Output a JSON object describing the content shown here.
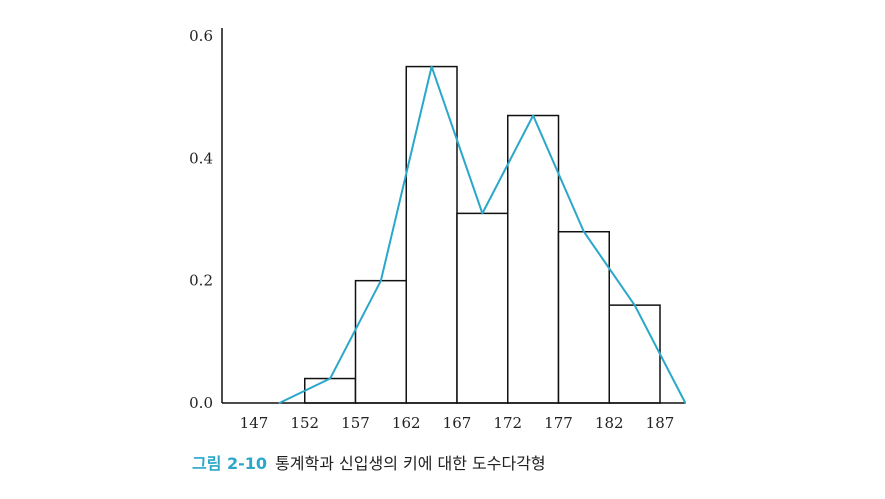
{
  "chart_data": {
    "type": "bar",
    "bins": [
      147,
      152,
      157,
      162,
      167,
      172,
      177,
      182,
      187
    ],
    "histogram_heights": [
      0.04,
      0.2,
      0.55,
      0.31,
      0.47,
      0.28,
      0.16
    ],
    "histogram_bin_starts": [
      152,
      157,
      162,
      167,
      172,
      177,
      182
    ],
    "bin_width": 5,
    "polygon_x": [
      149.5,
      154.5,
      159.5,
      164.5,
      169.5,
      174.5,
      179.5,
      184.5,
      189.5
    ],
    "polygon_y": [
      0,
      0.04,
      0.2,
      0.55,
      0.31,
      0.47,
      0.28,
      0.16,
      0
    ],
    "x_tick_labels": [
      "147",
      "152",
      "157",
      "162",
      "167",
      "172",
      "177",
      "182",
      "187"
    ],
    "y_ticks": [
      0,
      0.2,
      0.4,
      0.6
    ],
    "y_tick_labels": [
      "0.0",
      "0.2",
      "0.4",
      "0.6"
    ],
    "ylim": [
      0,
      0.6
    ],
    "xlabel": "",
    "ylabel": "",
    "title": "",
    "grid": false,
    "colors": {
      "bar_stroke": "#111111",
      "bar_fill": "#ffffff",
      "polygon": "#2aa7c9",
      "axis": "#111111"
    }
  },
  "caption": {
    "label": "그림 2-10",
    "text": "통계학과 신입생의 키에 대한 도수다각형",
    "label_color": "#2aa7c9"
  }
}
